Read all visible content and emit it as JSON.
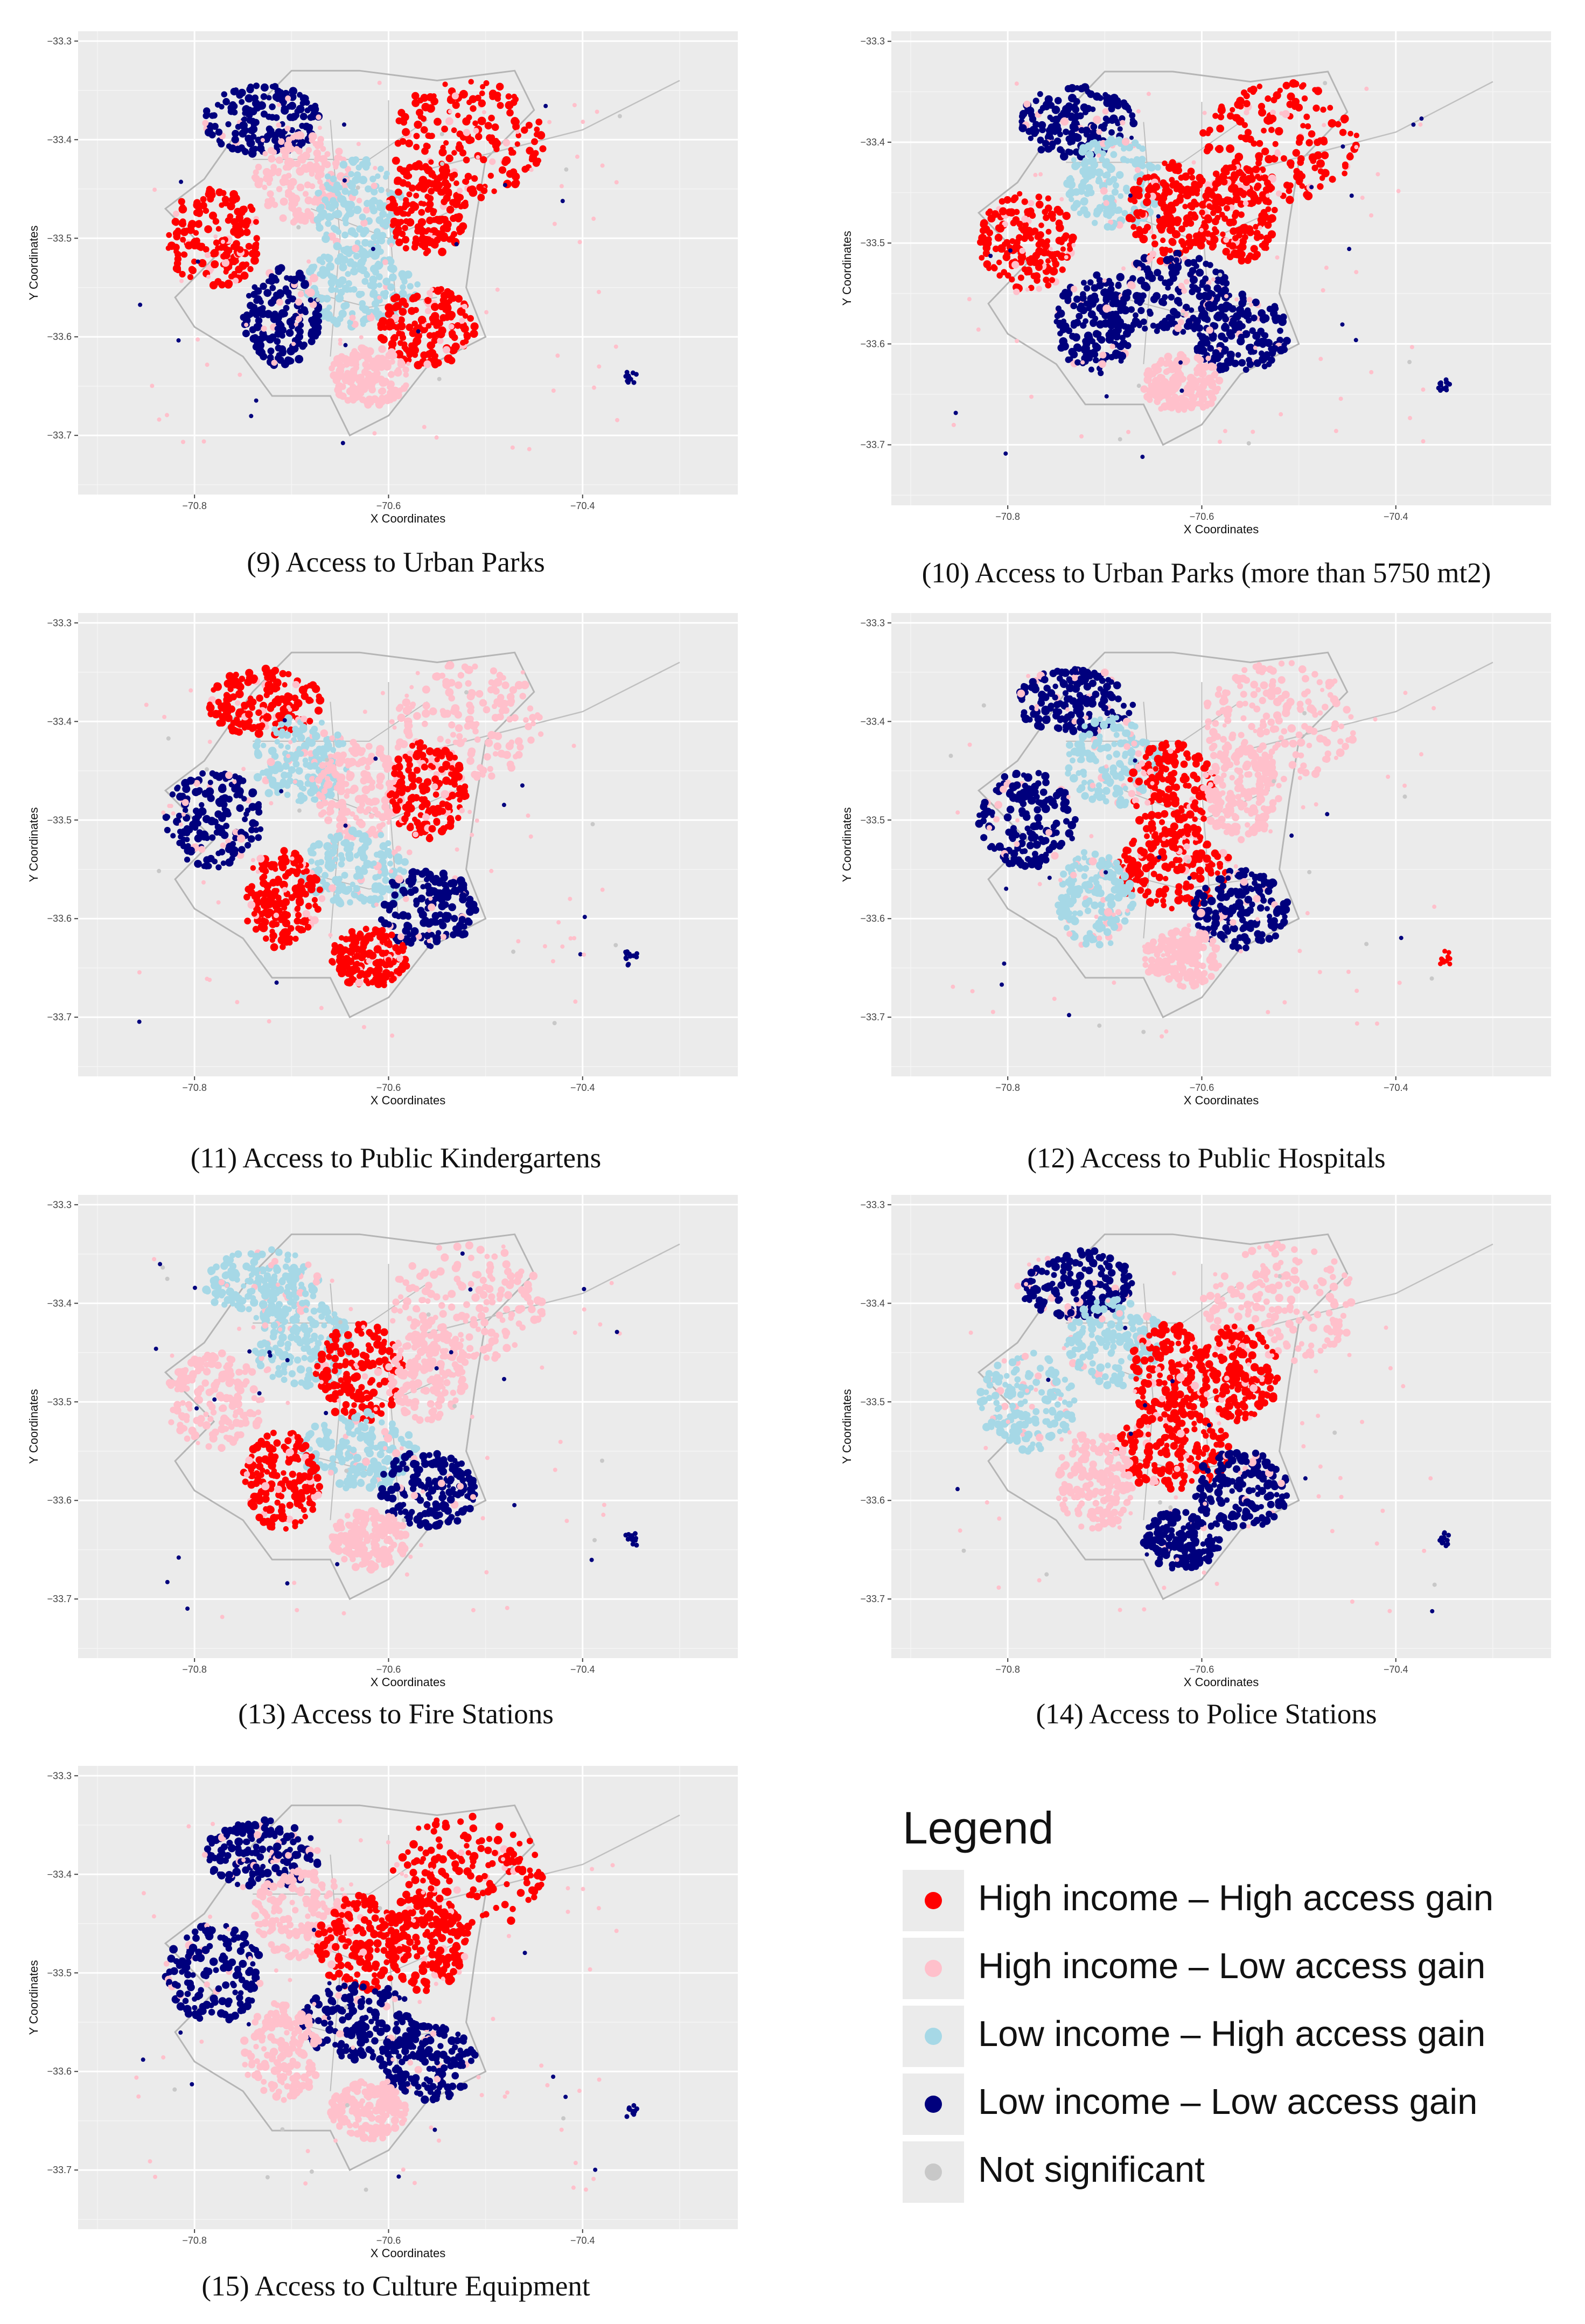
{
  "figure": {
    "legend_title": "Legend",
    "legend_items": [
      {
        "label": "High income – High access gain",
        "color": "#ff0000"
      },
      {
        "label": "High income – Low access gain",
        "color": "#ffc0cb"
      },
      {
        "label": "Low income – High access gain",
        "color": "#a6d8e6"
      },
      {
        "label": "Low income – Low access gain",
        "color": "#00007d"
      },
      {
        "label": "Not significant",
        "color": "#c8c8c8"
      }
    ]
  },
  "chart_data": [
    {
      "type": "scatter",
      "title": "(9) Access to Urban Parks",
      "xlabel": "X Coordinates",
      "ylabel": "Y Coordinates",
      "xlim": [
        -70.92,
        -70.24
      ],
      "ylim": [
        -33.76,
        -33.29
      ],
      "xticks": [
        "-70.8",
        "-70.6",
        "-70.4"
      ],
      "yticks": [
        "-33.3",
        "-33.4",
        "-33.5",
        "-33.6",
        "-33.7"
      ],
      "grid": true,
      "legend": "separate panel"
    },
    {
      "type": "scatter",
      "title": "(10) Access to Urban Parks (more than 5750 mt2)",
      "xlabel": "X Coordinates",
      "ylabel": "Y Coordinates",
      "xlim": [
        -70.92,
        -70.24
      ],
      "ylim": [
        -33.76,
        -33.29
      ],
      "xticks": [
        "-70.8",
        "-70.6",
        "-70.4"
      ],
      "yticks": [
        "-33.3",
        "-33.4",
        "-33.5",
        "-33.6",
        "-33.7"
      ],
      "grid": true,
      "legend": "separate panel"
    },
    {
      "type": "scatter",
      "title": "(11) Access to Public Kindergartens",
      "xlabel": "X Coordinates",
      "ylabel": "Y Coordinates",
      "xlim": [
        -70.92,
        -70.24
      ],
      "ylim": [
        -33.76,
        -33.29
      ],
      "xticks": [
        "-70.8",
        "-70.6",
        "-70.4"
      ],
      "yticks": [
        "-33.3",
        "-33.4",
        "-33.5",
        "-33.6",
        "-33.7"
      ],
      "grid": true,
      "legend": "separate panel"
    },
    {
      "type": "scatter",
      "title": "(12) Access to Public Hospitals",
      "xlabel": "X Coordinates",
      "ylabel": "Y Coordinates",
      "xlim": [
        -70.92,
        -70.24
      ],
      "ylim": [
        -33.76,
        -33.29
      ],
      "xticks": [
        "-70.8",
        "-70.6",
        "-70.4"
      ],
      "yticks": [
        "-33.3",
        "-33.4",
        "-33.5",
        "-33.6",
        "-33.7"
      ],
      "grid": true,
      "legend": "separate panel"
    },
    {
      "type": "scatter",
      "title": "(13) Access to Fire Stations",
      "xlabel": "X Coordinates",
      "ylabel": "Y Coordinates",
      "xlim": [
        -70.92,
        -70.24
      ],
      "ylim": [
        -33.76,
        -33.29
      ],
      "xticks": [
        "-70.8",
        "-70.6",
        "-70.4"
      ],
      "yticks": [
        "-33.3",
        "-33.4",
        "-33.5",
        "-33.6",
        "-33.7"
      ],
      "grid": true,
      "legend": "separate panel"
    },
    {
      "type": "scatter",
      "title": "(14) Access to Police Stations",
      "xlabel": "X Coordinates",
      "ylabel": "Y Coordinates",
      "xlim": [
        -70.92,
        -70.24
      ],
      "ylim": [
        -33.76,
        -33.29
      ],
      "xticks": [
        "-70.8",
        "-70.6",
        "-70.4"
      ],
      "yticks": [
        "-33.3",
        "-33.4",
        "-33.5",
        "-33.6",
        "-33.7"
      ],
      "grid": true,
      "legend": "separate panel"
    },
    {
      "type": "scatter",
      "title": "(15) Access to Culture Equipment",
      "xlabel": "X Coordinates",
      "ylabel": "Y Coordinates",
      "xlim": [
        -70.92,
        -70.24
      ],
      "ylim": [
        -33.76,
        -33.29
      ],
      "xticks": [
        "-70.8",
        "-70.6",
        "-70.4"
      ],
      "yticks": [
        "-33.3",
        "-33.4",
        "-33.5",
        "-33.6",
        "-33.7"
      ],
      "grid": true,
      "legend": "separate panel"
    }
  ]
}
